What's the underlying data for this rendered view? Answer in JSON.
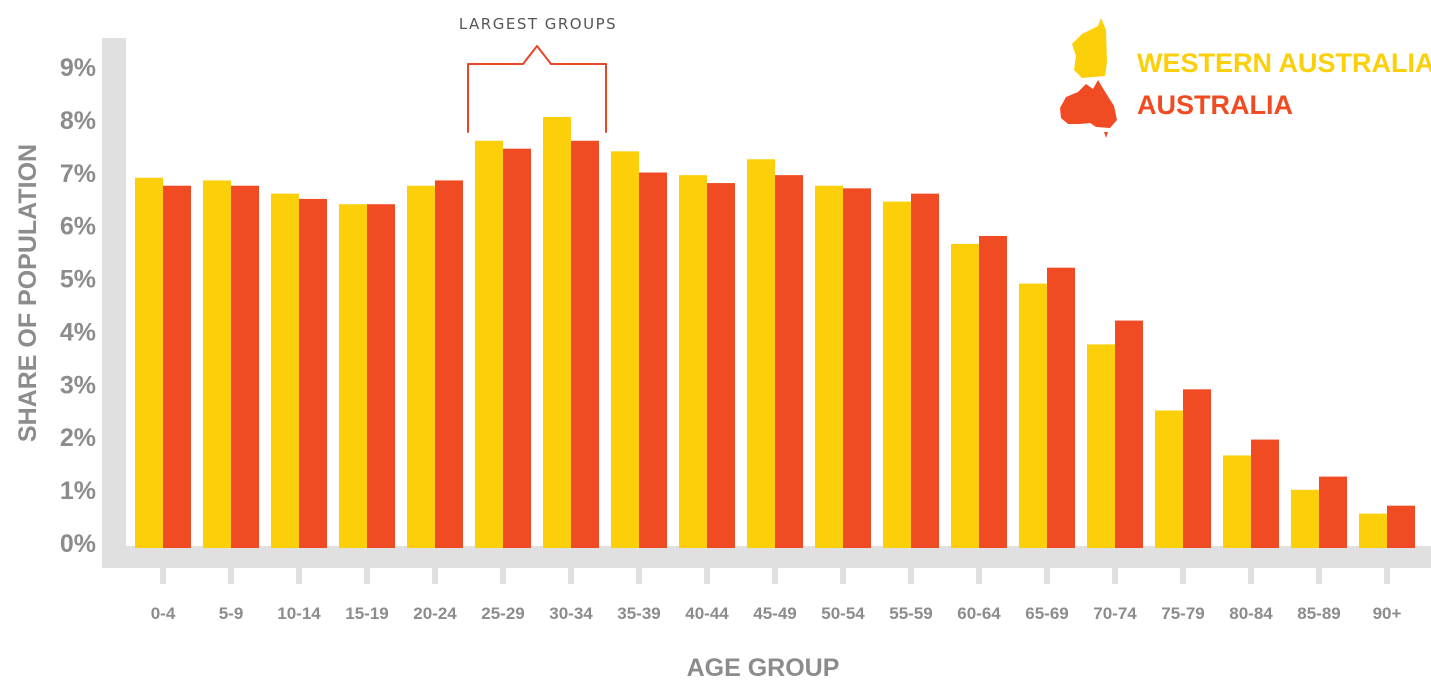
{
  "chart_data": {
    "type": "bar",
    "title": "",
    "xlabel": "AGE GROUP",
    "ylabel": "SHARE OF POPULATION",
    "ylim": [
      0,
      9
    ],
    "yticks": [
      "0%",
      "1%",
      "2%",
      "3%",
      "4%",
      "5%",
      "6%",
      "7%",
      "8%",
      "9%"
    ],
    "grid": false,
    "legend_position": "top-right",
    "categories": [
      "0-4",
      "5-9",
      "10-14",
      "15-19",
      "20-24",
      "25-29",
      "30-34",
      "35-39",
      "40-44",
      "45-49",
      "50-54",
      "55-59",
      "60-64",
      "65-69",
      "70-74",
      "75-79",
      "80-84",
      "85-89",
      "90+"
    ],
    "series": [
      {
        "name": "WESTERN AUSTRALIA",
        "color": "#fbd00a",
        "icon": "western-australia-map-icon",
        "values": [
          7.0,
          6.95,
          6.7,
          6.5,
          6.85,
          7.7,
          8.15,
          7.5,
          7.05,
          7.35,
          6.85,
          6.55,
          5.75,
          5.0,
          3.85,
          2.6,
          1.75,
          1.1,
          0.65
        ]
      },
      {
        "name": "AUSTRALIA",
        "color": "#f04b22",
        "icon": "australia-map-icon",
        "values": [
          6.85,
          6.85,
          6.6,
          6.5,
          6.95,
          7.55,
          7.7,
          7.1,
          6.9,
          7.05,
          6.8,
          6.7,
          5.9,
          5.3,
          4.3,
          3.0,
          2.05,
          1.35,
          0.8
        ]
      }
    ],
    "annotation": {
      "text": "LARGEST GROUPS",
      "categories": [
        "25-29",
        "30-34"
      ]
    }
  }
}
